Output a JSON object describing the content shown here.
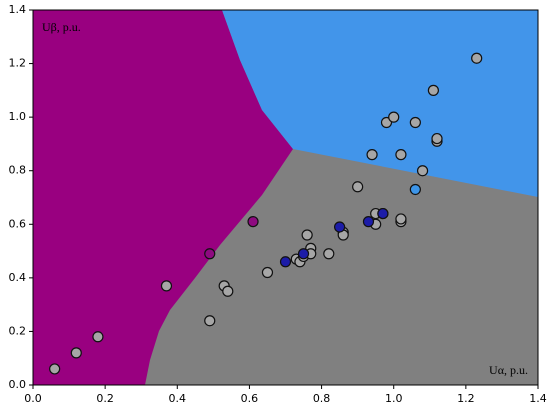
{
  "chart_data": {
    "type": "scatter",
    "y_label": "Uβ, p.u.",
    "x_label": "Uα, p.u.",
    "xlim": [
      0,
      1.4
    ],
    "ylim": [
      0,
      1.4
    ],
    "xticks": [
      {
        "value": 0,
        "label": "0.0"
      },
      {
        "value": 0.2,
        "label": "0.2"
      },
      {
        "value": 0.4,
        "label": "0.4"
      },
      {
        "value": 0.6,
        "label": "0.6"
      },
      {
        "value": 0.8,
        "label": "0.8"
      },
      {
        "value": 1.0,
        "label": "1.0"
      },
      {
        "value": 1.2,
        "label": "1.2"
      },
      {
        "value": 1.4,
        "label": "1.4"
      }
    ],
    "yticks": [
      {
        "value": 0,
        "label": "0.0"
      },
      {
        "value": 0.2,
        "label": "0.2"
      },
      {
        "value": 0.4,
        "label": "0.4"
      },
      {
        "value": 0.6,
        "label": "0.6"
      },
      {
        "value": 0.8,
        "label": "0.8"
      },
      {
        "value": 1.0,
        "label": "1.0"
      },
      {
        "value": 1.2,
        "label": "1.2"
      },
      {
        "value": 1.4,
        "label": "1.4"
      }
    ],
    "grid": false,
    "series": [
      {
        "color": "#a6a6a6",
        "x": [
          0.06,
          0.12,
          0.18,
          0.37,
          0.49,
          0.53,
          0.54,
          0.65,
          0.73,
          0.74,
          0.75,
          0.76,
          0.77,
          0.77,
          0.82,
          0.86,
          0.86,
          0.9,
          0.94,
          0.95,
          0.95,
          0.97,
          0.98,
          1.0,
          1.02,
          1.02,
          1.02,
          1.06,
          1.08,
          1.11,
          1.12,
          1.12,
          1.23
        ],
        "y": [
          0.06,
          0.12,
          0.18,
          0.37,
          0.24,
          0.37,
          0.35,
          0.42,
          0.47,
          0.46,
          0.48,
          0.56,
          0.51,
          0.49,
          0.49,
          0.57,
          0.56,
          0.74,
          0.86,
          0.64,
          0.6,
          0.64,
          0.98,
          1.0,
          0.86,
          0.61,
          0.62,
          0.98,
          0.8,
          1.1,
          0.91,
          0.92,
          1.22
        ]
      },
      {
        "color": "#1c1ca8",
        "x": [
          0.7,
          0.75,
          0.85,
          0.93,
          0.97
        ],
        "y": [
          0.46,
          0.49,
          0.59,
          0.61,
          0.64
        ]
      },
      {
        "color": "#3d95e8",
        "x": [
          1.06
        ],
        "y": [
          0.73
        ]
      },
      {
        "color": "#8e0a80",
        "x": [
          0.49,
          0.61
        ],
        "y": [
          0.49,
          0.61
        ]
      }
    ]
  }
}
